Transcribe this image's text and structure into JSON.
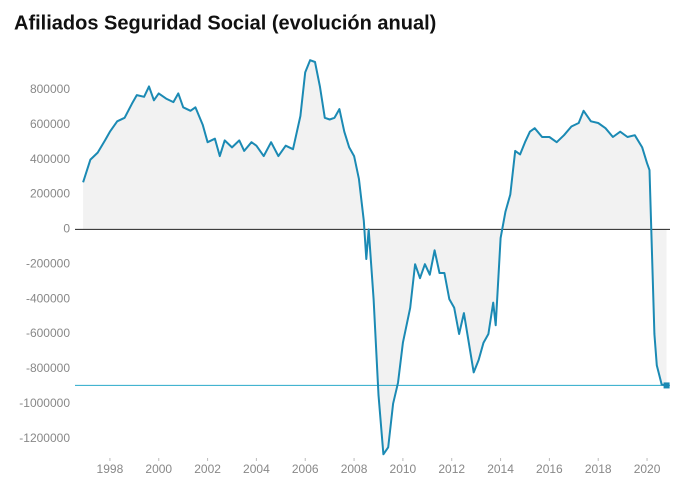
{
  "chart_data": {
    "type": "area",
    "title": "Afiliados Seguridad Social (evolución anual)",
    "x": [
      1996.9,
      1997.2,
      1997.5,
      1997.8,
      1998.0,
      1998.3,
      1998.6,
      1998.9,
      1999.1,
      1999.4,
      1999.6,
      1999.8,
      2000.0,
      2000.3,
      2000.6,
      2000.8,
      2001.0,
      2001.3,
      2001.5,
      2001.8,
      2002.0,
      2002.3,
      2002.5,
      2002.7,
      2003.0,
      2003.3,
      2003.5,
      2003.8,
      2004.0,
      2004.3,
      2004.6,
      2004.9,
      2005.2,
      2005.5,
      2005.8,
      2006.0,
      2006.2,
      2006.4,
      2006.6,
      2006.8,
      2007.0,
      2007.2,
      2007.4,
      2007.6,
      2007.8,
      2008.0,
      2008.2,
      2008.4,
      2008.5,
      2008.6,
      2008.8,
      2009.0,
      2009.2,
      2009.4,
      2009.6,
      2009.8,
      2010.0,
      2010.3,
      2010.5,
      2010.7,
      2010.9,
      2011.1,
      2011.3,
      2011.5,
      2011.7,
      2011.9,
      2012.1,
      2012.3,
      2012.5,
      2012.7,
      2012.9,
      2013.1,
      2013.3,
      2013.5,
      2013.7,
      2013.8,
      2014.0,
      2014.2,
      2014.4,
      2014.6,
      2014.8,
      2015.0,
      2015.2,
      2015.4,
      2015.7,
      2016.0,
      2016.3,
      2016.6,
      2016.9,
      2017.2,
      2017.4,
      2017.7,
      2018.0,
      2018.3,
      2018.6,
      2018.9,
      2019.2,
      2019.5,
      2019.8,
      2020.0,
      2020.1,
      2020.3,
      2020.4,
      2020.6,
      2020.8
    ],
    "values": [
      270000,
      400000,
      440000,
      510000,
      560000,
      620000,
      640000,
      720000,
      770000,
      760000,
      820000,
      740000,
      780000,
      750000,
      730000,
      780000,
      700000,
      680000,
      700000,
      600000,
      500000,
      520000,
      420000,
      510000,
      470000,
      510000,
      450000,
      500000,
      480000,
      420000,
      500000,
      420000,
      480000,
      460000,
      650000,
      900000,
      970000,
      960000,
      820000,
      640000,
      630000,
      640000,
      690000,
      560000,
      470000,
      420000,
      290000,
      50000,
      -170000,
      0,
      -400000,
      -950000,
      -1290000,
      -1250000,
      -1000000,
      -880000,
      -650000,
      -450000,
      -200000,
      -280000,
      -200000,
      -260000,
      -120000,
      -250000,
      -250000,
      -400000,
      -450000,
      -600000,
      -480000,
      -650000,
      -820000,
      -750000,
      -650000,
      -600000,
      -420000,
      -550000,
      -50000,
      100000,
      200000,
      450000,
      430000,
      500000,
      560000,
      580000,
      530000,
      530000,
      500000,
      540000,
      590000,
      610000,
      680000,
      620000,
      610000,
      580000,
      530000,
      560000,
      530000,
      540000,
      470000,
      380000,
      340000,
      -600000,
      -780000,
      -890000,
      -895000
    ],
    "color": "#1b8ab4",
    "fill": "#f2f2f2",
    "reference_line": -895000,
    "reference_color": "#2aa9c9",
    "xlim": [
      1996.57,
      2020.94
    ],
    "xticks": [
      1998,
      2000,
      2002,
      2004,
      2006,
      2008,
      2010,
      2012,
      2014,
      2016,
      2018,
      2020
    ],
    "ylim": [
      -1380000,
      1000000
    ],
    "yticks": [
      -1200000,
      -1000000,
      -800000,
      -600000,
      -400000,
      -200000,
      0,
      200000,
      400000,
      600000,
      800000
    ]
  }
}
